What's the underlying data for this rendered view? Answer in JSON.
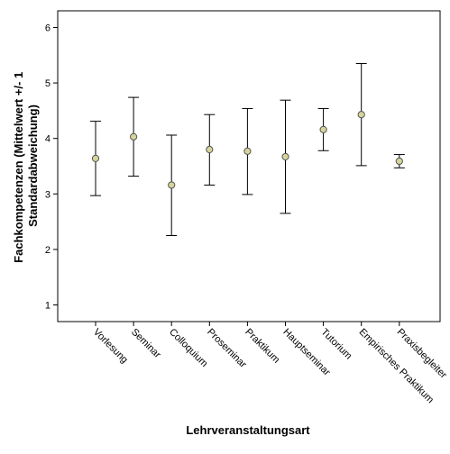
{
  "chart_data": {
    "type": "errorbar",
    "title": "",
    "xlabel": "Lehrveranstaltungsart",
    "ylabel_lines": [
      "Fachkompetenzen (Mittelwert +/- 1",
      "Standardabweichung)"
    ],
    "ylim": [
      0.7,
      6.3
    ],
    "yticks": [
      1,
      2,
      3,
      4,
      5,
      6
    ],
    "grid": false,
    "categories": [
      "Vorlesung",
      "Seminar",
      "Colloquium",
      "Proseminar",
      "Praktikum",
      "Hauptseminar",
      "Tutorium",
      "Empirisches Praktikum",
      "Praxisbegleiter"
    ],
    "series": [
      {
        "mean": [
          3.64,
          4.03,
          3.16,
          3.8,
          3.77,
          3.67,
          4.16,
          4.43,
          3.59
        ],
        "lower": [
          2.97,
          3.32,
          2.25,
          3.16,
          2.99,
          2.65,
          3.78,
          3.51,
          3.47
        ],
        "upper": [
          4.31,
          4.74,
          4.06,
          4.43,
          4.54,
          4.69,
          4.54,
          5.35,
          3.71
        ]
      }
    ],
    "colors": {
      "marker_fill": "#d6d49a",
      "marker_stroke": "#555555",
      "errorbar": "#000000",
      "axis": "#000000"
    }
  }
}
